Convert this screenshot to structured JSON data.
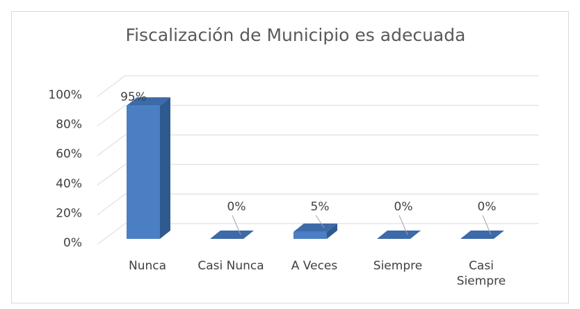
{
  "chart_data": {
    "type": "bar3d",
    "title": "Fiscalización de Municipio es adecuada",
    "categories": [
      "Nunca",
      "Casi Nunca",
      "A Veces",
      "Siempre",
      "Casi Siempre"
    ],
    "values": [
      95,
      0,
      5,
      0,
      0
    ],
    "value_labels": [
      "95%",
      "0%",
      "5%",
      "0%",
      "0%"
    ],
    "color": "#4a7fc4",
    "ylim": [
      0,
      100
    ],
    "yticks": [
      {
        "value": 0,
        "label": "0%"
      },
      {
        "value": 20,
        "label": "20%"
      },
      {
        "value": 40,
        "label": "40%"
      },
      {
        "value": 60,
        "label": "60%"
      },
      {
        "value": 80,
        "label": "80%"
      },
      {
        "value": 100,
        "label": "100%"
      }
    ],
    "grid": true
  }
}
